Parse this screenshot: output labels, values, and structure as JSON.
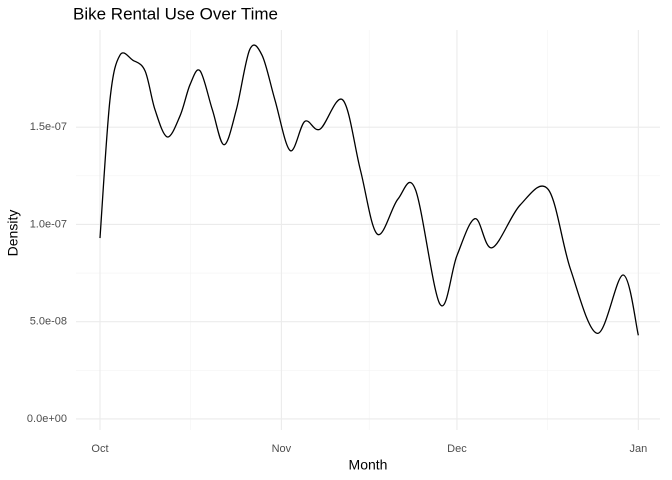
{
  "chart_data": {
    "type": "line",
    "title": "Bike Rental Use Over Time",
    "x_label": "Month",
    "y_label": "Density",
    "x": [
      0,
      1.7,
      3.4,
      5.6,
      7.7,
      9.4,
      11.5,
      13.7,
      15.4,
      17.1,
      19.2,
      21.2,
      23.3,
      25.6,
      27.7,
      29.9,
      32.5,
      35.0,
      37.6,
      41.5,
      44.5,
      47.4,
      50.9,
      53.9,
      58.1,
      61.0,
      64.1,
      67.0,
      71.8,
      76.6,
      80.4,
      85.0,
      89.4,
      92
    ],
    "series": [
      {
        "color": "#000000",
        "values": [
          9.3e-08,
          1.64e-07,
          1.87e-07,
          1.845e-07,
          1.79e-07,
          1.59e-07,
          1.45e-07,
          1.56e-07,
          1.72e-07,
          1.79e-07,
          1.59e-07,
          1.41e-07,
          1.59e-07,
          1.9e-07,
          1.87e-07,
          1.64e-07,
          1.38e-07,
          1.53e-07,
          1.49e-07,
          1.64e-07,
          1.28e-07,
          9.5e-08,
          1.13e-07,
          1.18e-07,
          5.9e-08,
          8.4e-08,
          1.03e-07,
          8.8e-08,
          1.1e-07,
          1.18e-07,
          7.7e-08,
          4.4e-08,
          7.4e-08,
          4.3e-08
        ]
      }
    ],
    "xlim": [
      -4.1,
      95.7
    ],
    "xticks": [
      {
        "value": 0,
        "label": "Oct"
      },
      {
        "value": 31,
        "label": "Nov"
      },
      {
        "value": 61,
        "label": "Dec"
      },
      {
        "value": 92,
        "label": "Jan"
      }
    ],
    "ylim": [
      -5.7e-09,
      2e-07
    ],
    "yticks": [
      {
        "value": 0,
        "label": "0.0e+00"
      },
      {
        "value": 5e-08,
        "label": "5.0e-08"
      },
      {
        "value": 1e-07,
        "label": "1.0e-07"
      },
      {
        "value": 1.5e-07,
        "label": "1.5e-07"
      }
    ],
    "grid": true
  }
}
